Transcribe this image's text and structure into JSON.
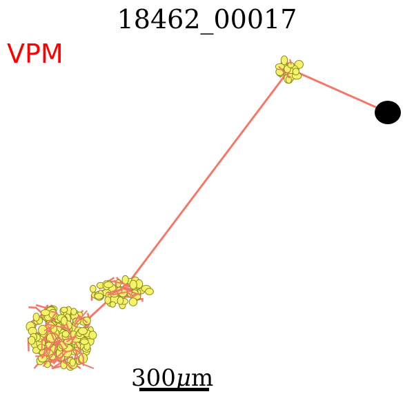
{
  "title": "18462_00017",
  "region_label": "VPM",
  "scale_bar": {
    "value": "300",
    "unit_symbol": "μ",
    "unit_suffix": "m"
  },
  "colors": {
    "region_label": "#ff0000",
    "neurite": "#f47868",
    "bouton_fill": "#f6f36a",
    "bouton_edge": "#8a8a1e",
    "soma": "#000000",
    "scale_bar": "#000000"
  }
}
